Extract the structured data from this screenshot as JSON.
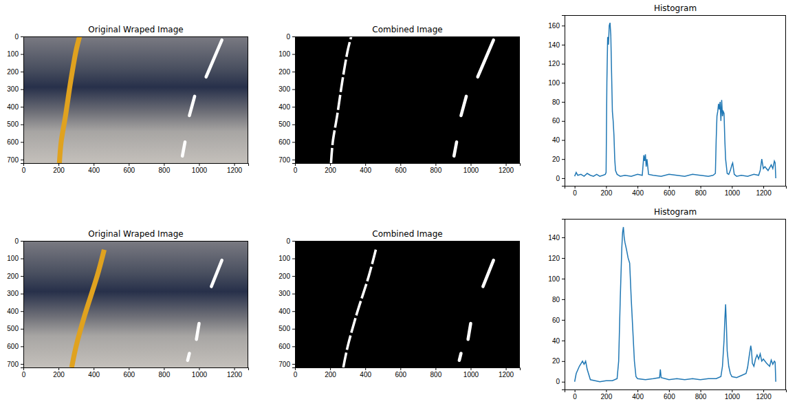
{
  "chart_data": [
    {
      "type": "image",
      "title": "Original Wraped Image",
      "xlim": [
        0,
        1280
      ],
      "ylim": [
        720,
        0
      ],
      "xticks": [
        0,
        200,
        400,
        600,
        800,
        1000,
        1200
      ],
      "yticks": [
        0,
        100,
        200,
        300,
        400,
        500,
        600,
        700
      ]
    },
    {
      "type": "image",
      "title": "Combined Image",
      "xlim": [
        0,
        1280
      ],
      "ylim": [
        720,
        0
      ],
      "xticks": [
        0,
        200,
        400,
        600,
        800,
        1000,
        1200
      ],
      "yticks": [
        0,
        100,
        200,
        300,
        400,
        500,
        600,
        700
      ]
    },
    {
      "type": "line",
      "title": "Histogram",
      "color": "#1f77b4",
      "x": [
        0,
        10,
        20,
        40,
        60,
        80,
        100,
        120,
        140,
        160,
        180,
        195,
        200,
        205,
        210,
        215,
        220,
        225,
        230,
        235,
        240,
        245,
        250,
        255,
        260,
        270,
        290,
        320,
        360,
        400,
        430,
        440,
        445,
        450,
        455,
        460,
        470,
        500,
        550,
        600,
        650,
        700,
        750,
        800,
        850,
        880,
        895,
        900,
        905,
        910,
        915,
        920,
        925,
        930,
        935,
        940,
        945,
        950,
        955,
        960,
        970,
        980,
        990,
        1000,
        1005,
        1010,
        1015,
        1030,
        1060,
        1100,
        1140,
        1170,
        1180,
        1190,
        1195,
        1200,
        1210,
        1230,
        1250,
        1260,
        1270,
        1275,
        1279
      ],
      "values": [
        2,
        6,
        3,
        4,
        2,
        5,
        3,
        2,
        4,
        2,
        3,
        4,
        6,
        100,
        148,
        140,
        160,
        163,
        150,
        110,
        70,
        60,
        45,
        20,
        8,
        4,
        2,
        3,
        2,
        4,
        3,
        24,
        18,
        25,
        12,
        20,
        4,
        3,
        2,
        4,
        3,
        2,
        4,
        3,
        2,
        3,
        5,
        40,
        65,
        70,
        78,
        72,
        80,
        60,
        82,
        65,
        70,
        68,
        40,
        20,
        5,
        4,
        8,
        14,
        16,
        10,
        4,
        2,
        3,
        2,
        4,
        3,
        8,
        20,
        15,
        10,
        12,
        8,
        14,
        10,
        18,
        16,
        0
      ],
      "xlim": [
        -64,
        1344
      ],
      "ylim": [
        -8,
        171
      ],
      "xticks": [
        0,
        200,
        400,
        600,
        800,
        1000,
        1200
      ],
      "yticks": [
        0,
        20,
        40,
        60,
        80,
        100,
        120,
        140,
        160
      ]
    },
    {
      "type": "image",
      "title": "Original Wraped Image",
      "xlim": [
        0,
        1280
      ],
      "ylim": [
        720,
        0
      ],
      "xticks": [
        0,
        200,
        400,
        600,
        800,
        1000,
        1200
      ],
      "yticks": [
        0,
        100,
        200,
        300,
        400,
        500,
        600,
        700
      ]
    },
    {
      "type": "image",
      "title": "Combined Image",
      "xlim": [
        0,
        1280
      ],
      "ylim": [
        720,
        0
      ],
      "xticks": [
        0,
        200,
        400,
        600,
        800,
        1000,
        1200
      ],
      "yticks": [
        0,
        100,
        200,
        300,
        400,
        500,
        600,
        700
      ]
    },
    {
      "type": "line",
      "title": "Histogram",
      "color": "#1f77b4",
      "x": [
        0,
        10,
        30,
        50,
        60,
        70,
        80,
        100,
        130,
        160,
        200,
        240,
        270,
        280,
        290,
        300,
        305,
        310,
        315,
        320,
        330,
        340,
        350,
        360,
        370,
        380,
        390,
        400,
        450,
        500,
        540,
        545,
        550,
        600,
        650,
        700,
        750,
        800,
        850,
        900,
        930,
        940,
        950,
        955,
        960,
        965,
        970,
        980,
        990,
        1000,
        1030,
        1060,
        1090,
        1100,
        1110,
        1120,
        1125,
        1130,
        1140,
        1150,
        1160,
        1170,
        1180,
        1190,
        1200,
        1220,
        1240,
        1250,
        1260,
        1270,
        1275,
        1279
      ],
      "values": [
        0,
        8,
        15,
        20,
        17,
        20,
        12,
        2,
        1,
        0,
        1,
        1,
        3,
        20,
        80,
        130,
        145,
        150,
        140,
        135,
        128,
        120,
        115,
        80,
        50,
        20,
        5,
        3,
        2,
        3,
        4,
        12,
        4,
        2,
        3,
        2,
        3,
        2,
        3,
        3,
        5,
        15,
        40,
        60,
        75,
        55,
        30,
        15,
        8,
        5,
        4,
        6,
        8,
        14,
        25,
        35,
        30,
        18,
        15,
        22,
        26,
        22,
        27,
        20,
        22,
        18,
        15,
        21,
        17,
        20,
        19,
        0
      ],
      "xlim": [
        -64,
        1344
      ],
      "ylim": [
        -7.5,
        158
      ],
      "xticks": [
        0,
        200,
        400,
        600,
        800,
        1000,
        1200
      ],
      "yticks": [
        0,
        20,
        40,
        60,
        80,
        100,
        120,
        140
      ]
    }
  ]
}
